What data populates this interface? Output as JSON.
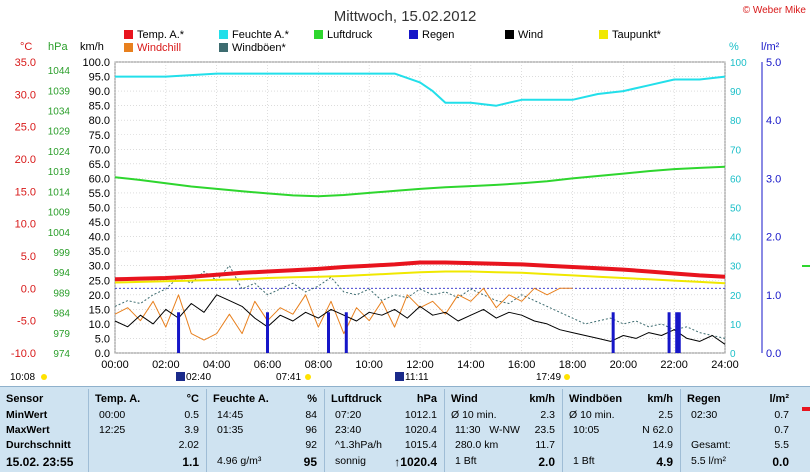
{
  "header": {
    "title": "Mittwoch, 15.02.2012",
    "copyright": "© Weber Mike"
  },
  "axis_units": {
    "temp": "°C",
    "pressure": "hPa",
    "wind": "km/h",
    "humidity": "%",
    "rain": "l/m²"
  },
  "legend": [
    {
      "label": "Temp. A.*",
      "color": "#e8141e"
    },
    {
      "label": "Feuchte A.*",
      "color": "#22dfea"
    },
    {
      "label": "Luftdruck",
      "color": "#2ed62e"
    },
    {
      "label": "Regen",
      "color": "#1616c8"
    },
    {
      "label": "Wind",
      "color": "#000000"
    },
    {
      "label": "Taupunkt*",
      "color": "#f0e800"
    },
    {
      "label": "Windchill",
      "color": "#e8801e"
    },
    {
      "label": "Windböen*",
      "color": "#3d6c70"
    }
  ],
  "markers": {
    "sunrise": "07:41",
    "sunset": "17:49",
    "moonrise": "02:40",
    "moonset": "11:11",
    "daylength": "10:08"
  },
  "chart_data": {
    "type": "line",
    "title": "Mittwoch, 15.02.2012",
    "x_ticks": [
      "00:00",
      "02:00",
      "04:00",
      "06:00",
      "08:00",
      "10:00",
      "12:00",
      "14:00",
      "16:00",
      "18:00",
      "20:00",
      "22:00",
      "24:00"
    ],
    "x_range_hours": [
      0,
      24
    ],
    "axes": {
      "temp": {
        "unit": "°C",
        "range": [
          -10,
          35
        ],
        "ticks": [
          "35.0",
          "30.0",
          "25.0",
          "20.0",
          "15.0",
          "10.0",
          "5.0",
          "0.0",
          "-5.0",
          "-10.0"
        ]
      },
      "pressure": {
        "unit": "hPa",
        "range": [
          974,
          1046
        ],
        "ticks": [
          "1044",
          "1039",
          "1034",
          "1029",
          "1024",
          "1019",
          "1014",
          "1009",
          "1004",
          "999",
          "994",
          "989",
          "984",
          "979",
          "974"
        ]
      },
      "wind": {
        "unit": "km/h",
        "range": [
          0,
          100
        ],
        "ticks": [
          "100.0",
          "95.0",
          "90.0",
          "85.0",
          "80.0",
          "75.0",
          "70.0",
          "65.0",
          "60.0",
          "55.0",
          "50.0",
          "45.0",
          "40.0",
          "35.0",
          "30.0",
          "25.0",
          "20.0",
          "15.0",
          "10.0",
          "5.0",
          "0.0"
        ]
      },
      "humidity": {
        "unit": "%",
        "range": [
          0,
          100
        ],
        "ticks": [
          "100",
          "90",
          "80",
          "70",
          "60",
          "50",
          "40",
          "30",
          "20",
          "10",
          "0"
        ]
      },
      "rain": {
        "unit": "l/m²",
        "range": [
          0,
          5
        ],
        "ticks": [
          "5.0",
          "4.0",
          "3.0",
          "2.0",
          "1.0",
          "0.0"
        ]
      }
    },
    "series": [
      {
        "name": "Temp. A.*",
        "axis": "temp",
        "color": "#e8141e",
        "width": 4,
        "x": [
          0,
          1,
          2,
          3,
          4,
          5,
          6,
          7,
          8,
          9,
          10,
          11,
          12,
          12.5,
          13,
          14,
          15,
          16,
          17,
          18,
          19,
          20,
          21,
          22,
          23,
          24
        ],
        "y": [
          1.4,
          1.5,
          1.6,
          1.8,
          2.1,
          2.4,
          2.6,
          2.8,
          3.0,
          3.3,
          3.5,
          3.7,
          4.0,
          4.0,
          4.0,
          3.9,
          3.8,
          3.7,
          3.5,
          3.3,
          3.1,
          2.9,
          2.6,
          2.3,
          2.0,
          1.8
        ]
      },
      {
        "name": "Taupunkt*",
        "axis": "temp",
        "color": "#f0e800",
        "width": 2,
        "x": [
          0,
          1,
          2,
          3,
          4,
          5,
          6,
          7,
          8,
          9,
          10,
          11,
          12,
          13,
          14,
          15,
          16,
          17,
          18,
          19,
          20,
          21,
          22,
          23,
          24
        ],
        "y": [
          0.9,
          1.0,
          1.1,
          1.2,
          1.3,
          1.4,
          1.6,
          1.7,
          1.8,
          1.9,
          2.1,
          2.3,
          2.5,
          2.6,
          2.6,
          2.5,
          2.4,
          2.2,
          2.0,
          1.8,
          1.6,
          1.4,
          1.2,
          1.0,
          0.8
        ]
      },
      {
        "name": "Feuchte A.*",
        "axis": "humidity",
        "color": "#22dfea",
        "width": 2,
        "x": [
          0,
          2,
          4,
          6,
          8,
          10,
          11,
          12,
          12.5,
          13,
          14,
          15,
          15.5,
          16,
          17,
          18,
          19,
          20,
          21,
          22,
          23,
          24
        ],
        "y": [
          95,
          95,
          96,
          96,
          96,
          96,
          96,
          93,
          90,
          86,
          86,
          85,
          86,
          87,
          87,
          87,
          89,
          90,
          92,
          94,
          94,
          95
        ]
      },
      {
        "name": "Luftdruck",
        "axis": "pressure",
        "color": "#2ed62e",
        "width": 2,
        "x": [
          0,
          1,
          2,
          3,
          4,
          5,
          6,
          7,
          8,
          9,
          10,
          11,
          12,
          13,
          14,
          15,
          16,
          17,
          18,
          19,
          20,
          21,
          22,
          23,
          24
        ],
        "y": [
          1017.5,
          1016.8,
          1016.0,
          1015.2,
          1014.6,
          1014.0,
          1013.5,
          1013.0,
          1012.8,
          1013.1,
          1013.6,
          1014.1,
          1014.6,
          1015.0,
          1015.3,
          1015.6,
          1016.0,
          1016.5,
          1017.2,
          1017.8,
          1018.4,
          1019.0,
          1019.5,
          1019.8,
          1020.1
        ]
      },
      {
        "name": "Windböen*",
        "axis": "wind",
        "color": "#3d6c70",
        "width": 1,
        "dash": "2,2",
        "x": [
          0,
          0.5,
          1,
          1.5,
          2,
          2.5,
          3,
          3.5,
          4,
          4.5,
          5,
          5.5,
          6,
          6.5,
          7,
          7.5,
          8,
          8.5,
          9,
          9.5,
          10,
          10.5,
          11,
          11.5,
          12,
          12.5,
          13,
          13.5,
          14,
          14.5,
          15,
          15.5,
          16,
          16.5,
          17,
          17.5,
          18,
          18.5,
          19,
          19.5,
          20,
          20.5,
          21,
          21.5,
          22,
          22.5,
          23,
          23.5,
          24
        ],
        "y": [
          16,
          18,
          17,
          20,
          22,
          26,
          24,
          28,
          25,
          30,
          22,
          24,
          20,
          22,
          24,
          21,
          23,
          26,
          21,
          20,
          22,
          18,
          20,
          19,
          22,
          20,
          21,
          19,
          22,
          20,
          18,
          17,
          20,
          18,
          16,
          14,
          12,
          10,
          11,
          12,
          10,
          11,
          9,
          10,
          8,
          9,
          7,
          6,
          5
        ]
      },
      {
        "name": "Windchill",
        "axis": "temp",
        "color": "#e8801e",
        "width": 1,
        "x": [
          0,
          0.5,
          1,
          1.5,
          2,
          2.5,
          3,
          3.5,
          4,
          4.5,
          5,
          5.5,
          6,
          6.5,
          7,
          7.5,
          8,
          8.5,
          9,
          9.5,
          10,
          10.5,
          11,
          11.5,
          12,
          12.5,
          13,
          13.5,
          14,
          14.5,
          15,
          15.5,
          16,
          16.5,
          17,
          17.5,
          18
        ],
        "y": [
          -4,
          -3,
          -5,
          -2,
          -6,
          -1,
          -7,
          -8,
          -7,
          -4,
          -7,
          -2,
          -5,
          -3,
          -4,
          -1,
          -6,
          -2,
          -7,
          -3,
          -5,
          -2,
          -6,
          -1,
          -3,
          -2,
          -4,
          -1,
          -2,
          0,
          -3,
          -1,
          -2,
          0,
          -1,
          0,
          0
        ]
      },
      {
        "name": "Wind",
        "axis": "wind",
        "color": "#000000",
        "width": 1,
        "x": [
          0,
          0.5,
          1,
          1.5,
          2,
          2.5,
          3,
          3.5,
          4,
          4.5,
          5,
          5.5,
          6,
          6.5,
          7,
          7.5,
          8,
          8.5,
          9,
          9.5,
          10,
          10.5,
          11,
          11.5,
          12,
          12.5,
          13,
          13.5,
          14,
          14.5,
          15,
          15.5,
          16,
          16.5,
          17,
          17.5,
          18,
          18.5,
          19,
          19.5,
          20,
          20.5,
          21,
          21.5,
          22,
          22.5,
          23,
          23.5,
          24
        ],
        "y": [
          11,
          9,
          13,
          10,
          15,
          12,
          17,
          14,
          20,
          18,
          16,
          12,
          9,
          13,
          11,
          14,
          12,
          15,
          13,
          11,
          14,
          13,
          15,
          12,
          16,
          13,
          14,
          11,
          13,
          15,
          12,
          14,
          13,
          11,
          10,
          8,
          7,
          6,
          5,
          4,
          6,
          5,
          7,
          6,
          8,
          5,
          4,
          6,
          3
        ]
      }
    ],
    "rain_bars": {
      "axis": "rain",
      "color": "#1616c8",
      "x": [
        2.5,
        6.0,
        8.4,
        9.1,
        19.6,
        21.8,
        22.1,
        22.2
      ],
      "y": [
        0.7,
        0.7,
        0.7,
        0.7,
        0.7,
        0.7,
        0.7,
        0.7
      ]
    }
  },
  "stats": {
    "sensor": {
      "header": "Sensor",
      "rows": [
        "MinWert",
        "MaxWert",
        "Durchschnitt",
        "15.02. 23:55"
      ]
    },
    "temp": {
      "header": "Temp. A.",
      "unit": "°C",
      "rows": [
        {
          "t": "00:00",
          "v": "0.5"
        },
        {
          "t": "12:25",
          "v": "3.9"
        },
        {
          "t": "",
          "v": "2.02"
        },
        {
          "t": "",
          "v": "1.1"
        }
      ]
    },
    "humidity": {
      "header": "Feuchte A.",
      "unit": "%",
      "rows": [
        {
          "t": "14:45",
          "v": "84"
        },
        {
          "t": "01:35",
          "v": "96"
        },
        {
          "t": "",
          "v": "92"
        },
        {
          "t": "4.96 g/m³",
          "v": "95"
        }
      ]
    },
    "pressure": {
      "header": "Luftdruck",
      "unit": "hPa",
      "rows": [
        {
          "t": "07:20",
          "v": "1012.1"
        },
        {
          "t": "23:40",
          "v": "1020.4"
        },
        {
          "t": "^1.3hPa/h",
          "v": "1015.4"
        },
        {
          "t": "sonnig",
          "v": "↑1020.4"
        }
      ]
    },
    "wind": {
      "header": "Wind",
      "unit": "km/h",
      "rows": [
        {
          "t": "Ø 10 min.",
          "v": "2.3"
        },
        {
          "t": "11:30   W-NW",
          "v": "23.5"
        },
        {
          "t": "280.0 km",
          "v": "11.7"
        },
        {
          "t": "1 Bft",
          "v": "2.0"
        }
      ]
    },
    "gusts": {
      "header": "Windböen",
      "unit": "km/h",
      "rows": [
        {
          "t": "Ø 10 min.",
          "v": "2.5"
        },
        {
          "t": "10:05",
          "v": "N 62.0"
        },
        {
          "t": "",
          "v": "14.9"
        },
        {
          "t": "1 Bft",
          "v": "4.9"
        }
      ]
    },
    "rain": {
      "header": "Regen",
      "unit": "l/m²",
      "rows": [
        {
          "t": "02:30",
          "v": "0.7"
        },
        {
          "t": "",
          "v": "0.7"
        },
        {
          "t": "Gesamt:",
          "v": "5.5"
        },
        {
          "t": "5.5 l/m²",
          "v": "0.0"
        }
      ]
    }
  }
}
